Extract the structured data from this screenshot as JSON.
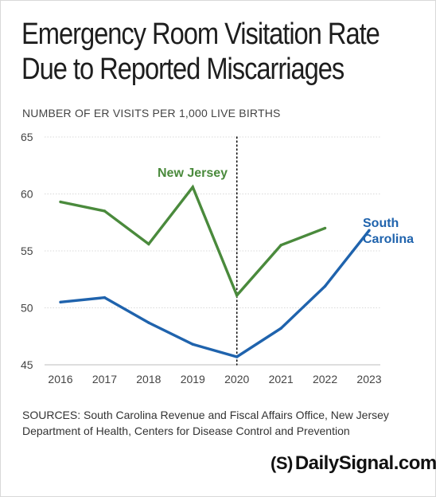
{
  "title_line1": "Emergency Room Visitation Rate",
  "title_line2": "Due to Reported Miscarriages",
  "subtitle": "NUMBER OF ER VISITS PER 1,000 LIVE BIRTHS",
  "sources": "SOURCES: South Carolina Revenue and Fiscal Affairs Office, New Jersey Department of Health, Centers for Disease Control and Prevention",
  "brand": {
    "logo_glyph": "(S)",
    "name": "DailySignal.com"
  },
  "colors": {
    "new_jersey": "#4a8a3c",
    "south_carolina": "#1f63ad",
    "grid": "#d9d9d9",
    "marker": "#111111"
  },
  "chart_data": {
    "type": "line",
    "x": [
      "2016",
      "2017",
      "2018",
      "2019",
      "2020",
      "2021",
      "2022",
      "2023"
    ],
    "ylim": [
      45,
      65
    ],
    "yticks": [
      "45",
      "50",
      "55",
      "60",
      "65"
    ],
    "grid": true,
    "marker_line_x": "2020",
    "series": [
      {
        "name": "New Jersey",
        "label_lines": [
          "New Jersey"
        ],
        "color_key": "new_jersey",
        "values": [
          59.3,
          58.5,
          55.6,
          60.6,
          51.1,
          55.5,
          57.0,
          null
        ]
      },
      {
        "name": "South Carolina",
        "label_lines": [
          "South",
          "Carolina"
        ],
        "color_key": "south_carolina",
        "values": [
          50.5,
          50.9,
          48.7,
          46.8,
          45.7,
          48.2,
          51.9,
          56.8
        ]
      }
    ]
  }
}
